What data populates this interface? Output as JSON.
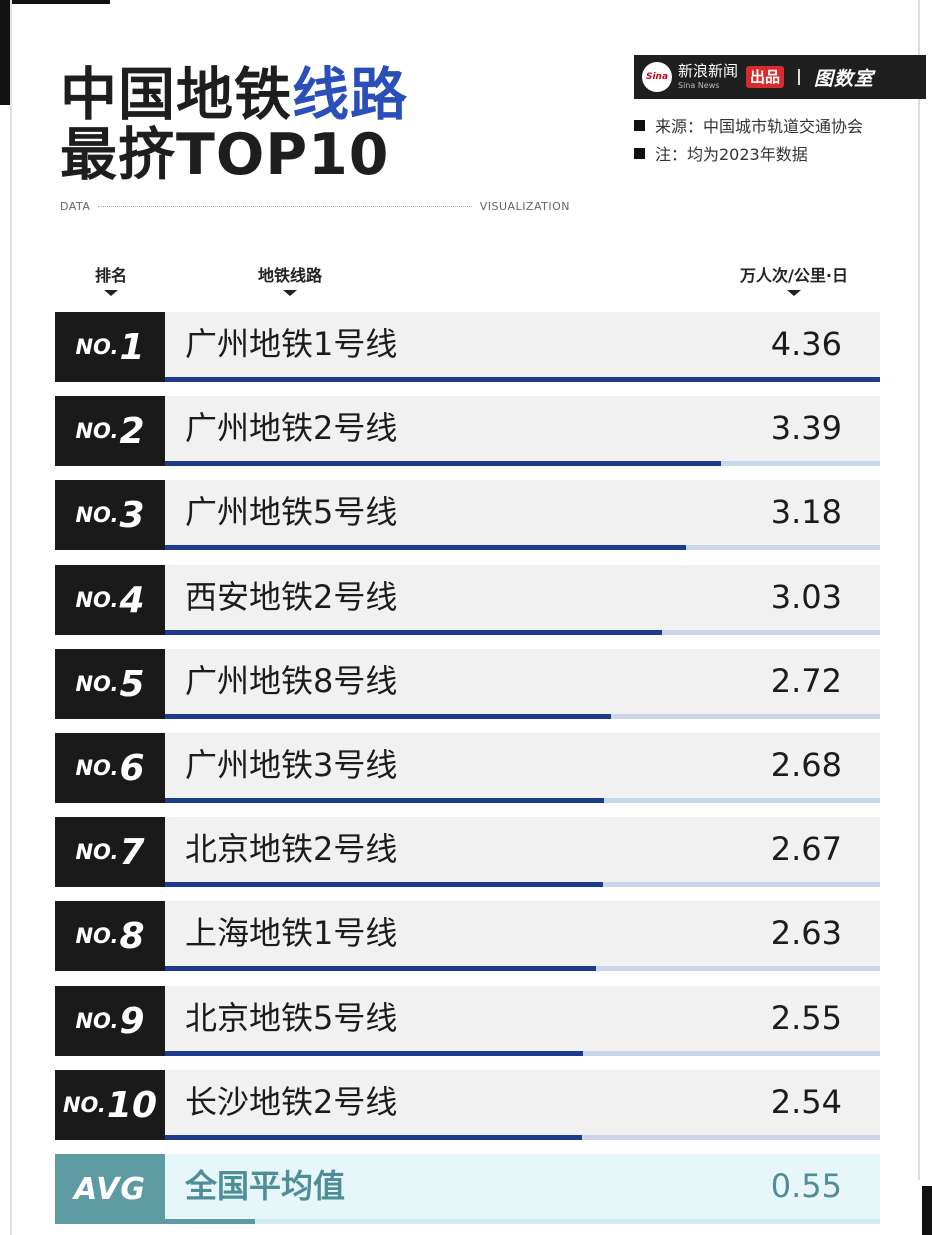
{
  "header": {
    "title_prefix": "中国地铁",
    "title_accent": "线路",
    "title_line2": "最挤TOP10",
    "data_label": "DATA",
    "visualization_label": "VISUALIZATION"
  },
  "brand": {
    "logo_text": "Sina",
    "name_cn": "新浪新闻",
    "name_en": "Sina News",
    "badge": "出品",
    "partner": "图数室"
  },
  "notes": {
    "source": "来源：中国城市轨道交通协会",
    "note": "注：均为2023年数据"
  },
  "columns": {
    "rank": "排名",
    "line": "地铁线路",
    "value": "万人次/公里·日"
  },
  "colors": {
    "accent": "#2a4fb8",
    "bar": "#1c3b8a",
    "bar_track": "#c9d6ea",
    "rank_bg": "#1a1a1a",
    "avg": "#5d9aa1"
  },
  "chart_data": {
    "type": "bar",
    "orientation": "horizontal",
    "ylabel": "万人次/公里·日",
    "xlim": [
      0,
      4.36
    ],
    "rows": [
      {
        "rank_prefix": "NO.",
        "rank": "1",
        "line": "广州地铁1号线",
        "value": 4.36,
        "value_text": "4.36"
      },
      {
        "rank_prefix": "NO.",
        "rank": "2",
        "line": "广州地铁2号线",
        "value": 3.39,
        "value_text": "3.39"
      },
      {
        "rank_prefix": "NO.",
        "rank": "3",
        "line": "广州地铁5号线",
        "value": 3.18,
        "value_text": "3.18"
      },
      {
        "rank_prefix": "NO.",
        "rank": "4",
        "line": "西安地铁2号线",
        "value": 3.03,
        "value_text": "3.03"
      },
      {
        "rank_prefix": "NO.",
        "rank": "5",
        "line": "广州地铁8号线",
        "value": 2.72,
        "value_text": "2.72"
      },
      {
        "rank_prefix": "NO.",
        "rank": "6",
        "line": "广州地铁3号线",
        "value": 2.68,
        "value_text": "2.68"
      },
      {
        "rank_prefix": "NO.",
        "rank": "7",
        "line": "北京地铁2号线",
        "value": 2.67,
        "value_text": "2.67"
      },
      {
        "rank_prefix": "NO.",
        "rank": "8",
        "line": "上海地铁1号线",
        "value": 2.63,
        "value_text": "2.63"
      },
      {
        "rank_prefix": "NO.",
        "rank": "9",
        "line": "北京地铁5号线",
        "value": 2.55,
        "value_text": "2.55"
      },
      {
        "rank_prefix": "NO.",
        "rank": "10",
        "line": "长沙地铁2号线",
        "value": 2.54,
        "value_text": "2.54"
      }
    ],
    "average": {
      "rank": "AVG",
      "line": "全国平均值",
      "value": 0.55,
      "value_text": "0.55"
    }
  }
}
